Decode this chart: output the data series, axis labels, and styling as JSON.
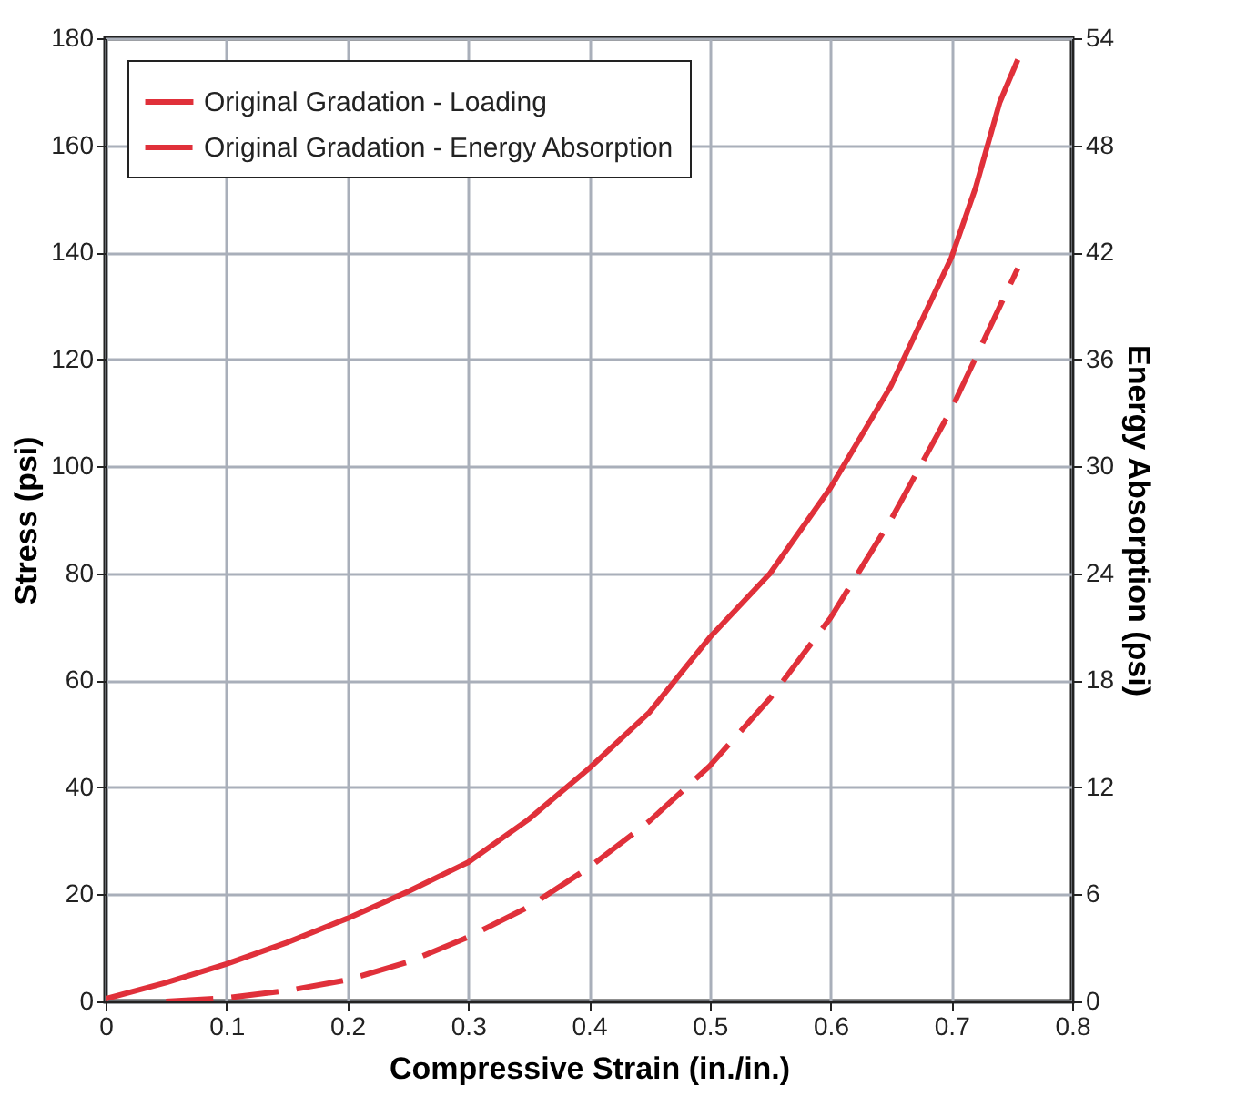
{
  "chart_data": {
    "type": "line",
    "xlabel": "Compressive Strain (in./in.)",
    "ylabel": "Stress (psi)",
    "y2label": "Energy Absorption (psi)",
    "xlim": [
      0,
      0.8
    ],
    "xticks": [
      0,
      0.1,
      0.2,
      0.3,
      0.4,
      0.5,
      0.6,
      0.7,
      0.8
    ],
    "ylim": [
      0,
      180
    ],
    "yticks": [
      0,
      20,
      40,
      60,
      80,
      100,
      120,
      140,
      160,
      180
    ],
    "y2lim": [
      0,
      54
    ],
    "y2ticks": [
      0,
      6,
      12,
      18,
      24,
      30,
      36,
      42,
      48,
      54
    ],
    "grid": true,
    "legend": "top left",
    "series": [
      {
        "name": "Original Gradation - Loading",
        "color": "#e0303a",
        "line_style": "solid",
        "x": [
          0,
          0.05,
          0.1,
          0.15,
          0.2,
          0.25,
          0.3,
          0.35,
          0.4,
          0.45,
          0.5,
          0.55,
          0.6,
          0.65,
          0.7,
          0.72,
          0.74,
          0.755
        ],
        "values": [
          0.5,
          3.5,
          7,
          11,
          15.5,
          20.5,
          26,
          34,
          43.5,
          54,
          68,
          80,
          96,
          115,
          139,
          152,
          168,
          176
        ]
      },
      {
        "name": "Original Gradation - Energy Absorption",
        "color": "#e0303a",
        "line_style": "dashed",
        "axis": "y2",
        "x": [
          0.05,
          0.1,
          0.15,
          0.2,
          0.25,
          0.3,
          0.35,
          0.4,
          0.45,
          0.5,
          0.55,
          0.6,
          0.65,
          0.7,
          0.755
        ],
        "values": [
          0,
          0.2,
          0.6,
          1.2,
          2.2,
          3.6,
          5.3,
          7.5,
          10.1,
          13.2,
          17,
          21.5,
          27,
          33.2,
          41.1
        ]
      }
    ]
  }
}
